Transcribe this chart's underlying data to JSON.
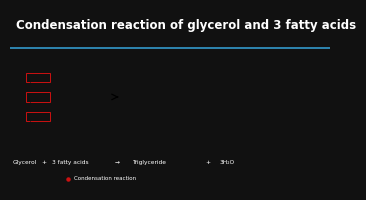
{
  "title": "Condensation reaction of glycerol and 3 fatty acids",
  "title_color": "#ffffff",
  "title_fontsize": 8.5,
  "bg_color": "#111111",
  "title_bar_color": "#1a1a1a",
  "blue_line_color": "#3399cc",
  "diagram_bg": "#f5f5f0",
  "dot_color": "#cc1111",
  "box_color": "#cc1111",
  "diagram_text_color": "#111111"
}
